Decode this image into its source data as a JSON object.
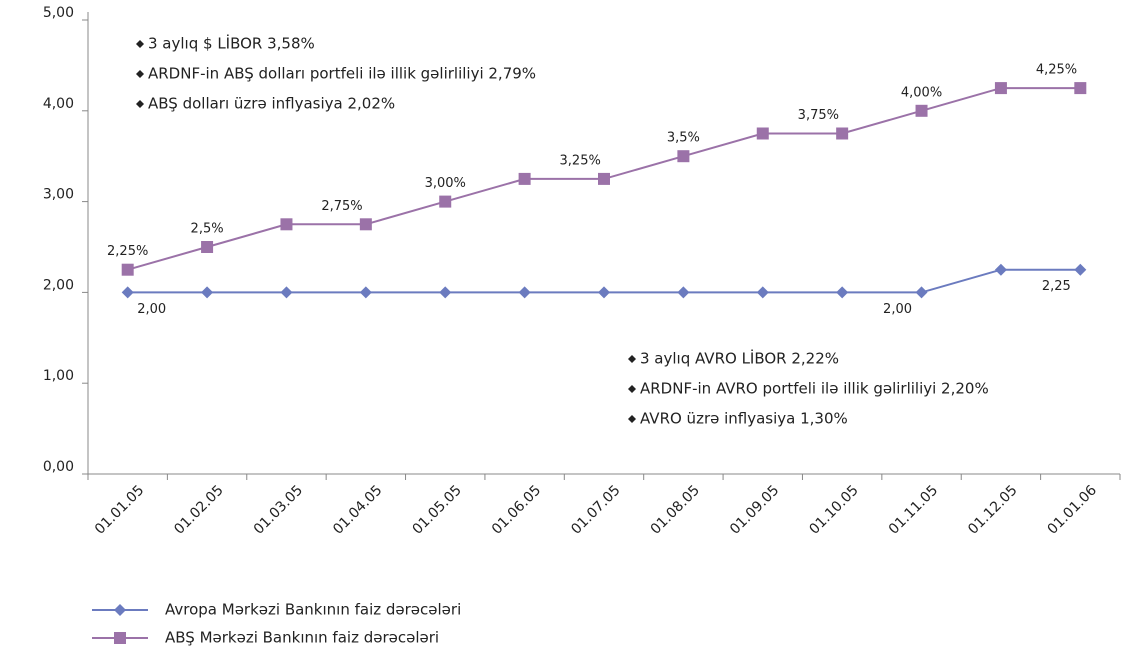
{
  "chart_data": {
    "type": "line",
    "categories": [
      "01.01.05",
      "01.02.05",
      "01.03.05",
      "01.04.05",
      "01.05.05",
      "01.06.05",
      "01.07.05",
      "01.08.05",
      "01.09.05",
      "01.10.05",
      "01.11.05",
      "01.12.05",
      "01.01.06"
    ],
    "series": [
      {
        "name": "Avropa Mərkəzi Bankının faiz dərəcələri",
        "color": "#6b7bbf",
        "marker": "diamond",
        "values": [
          2,
          2,
          2,
          2,
          2,
          2,
          2,
          2,
          2,
          2,
          2,
          2.25,
          2.25
        ],
        "value_labels": [
          "2,00",
          null,
          null,
          null,
          null,
          null,
          null,
          null,
          null,
          null,
          "2,00",
          null,
          "2,25"
        ]
      },
      {
        "name": "ABŞ Mərkəzi Bankının faiz dərəcələri",
        "color": "#9b72a8",
        "marker": "square",
        "values": [
          2.25,
          2.5,
          2.75,
          2.75,
          3,
          3.25,
          3.25,
          3.5,
          3.75,
          3.75,
          4,
          4.25,
          4.25
        ],
        "value_labels": [
          "2,25%",
          "2,5%",
          "2,75%",
          null,
          "3,00%",
          "3,25%",
          null,
          "3,5%",
          "3,75%",
          null,
          "4,00%",
          "4,25%",
          null
        ]
      }
    ],
    "ylim": [
      0,
      5
    ],
    "yticks": [
      {
        "value": 0,
        "label": "0,00"
      },
      {
        "value": 1,
        "label": "1,00"
      },
      {
        "value": 2,
        "label": "2,00"
      },
      {
        "value": 3,
        "label": "3,00"
      },
      {
        "value": 4,
        "label": "4,00"
      },
      {
        "value": 5,
        "label": "5,00"
      }
    ],
    "annotations": [
      [
        "3 aylıq $ LİBOR   3,58%",
        "ARDNF-in ABŞ dolları portfeli ilə illik gəlirliliyi   2,79%",
        "ABŞ dolları üzrə inflyasiya   2,02%"
      ],
      [
        "3 aylıq AVRO LİBOR   2,22%",
        "ARDNF-in AVRO portfeli ilə illik gəlirliliyi   2,20%",
        "AVRO üzrə inflyasiya   1,30%"
      ]
    ]
  }
}
